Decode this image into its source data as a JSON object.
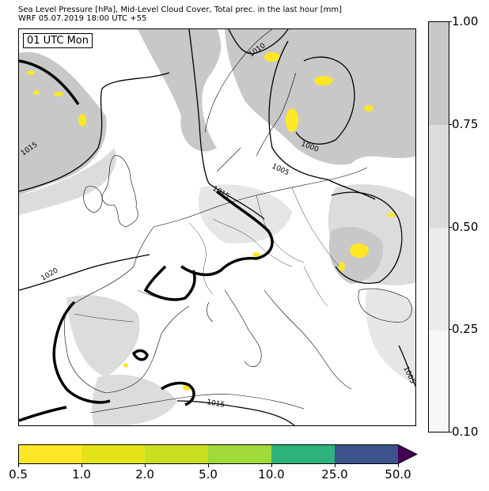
{
  "title": {
    "line1": "Sea Level Pressure [hPa], Mid-Level Cloud Cover, Total prec. in the last hour [mm]",
    "line2": "WRF 05.07.2019 18:00 UTC +55"
  },
  "map": {
    "time_label": "01 UTC Mon",
    "isobar_labels": [
      {
        "text": "1010"
      },
      {
        "text": "1015"
      },
      {
        "text": "1000"
      },
      {
        "text": "1005"
      },
      {
        "text": "1015"
      },
      {
        "text": "1020"
      },
      {
        "text": "1015"
      },
      {
        "text": "1005"
      }
    ]
  },
  "cloud_colorbar": {
    "ticks": [
      "1.00",
      "0.75",
      "0.50",
      "0.25",
      "0.10"
    ],
    "colors": [
      "#c8c8c8",
      "#dcdcdc",
      "#ebebeb",
      "#f7f7f7"
    ]
  },
  "precip_colorbar": {
    "ticks": [
      "0.5",
      "1.0",
      "2.0",
      "5.0",
      "10.0",
      "25.0",
      "50.0"
    ],
    "colors": [
      "#fde725",
      "#e4e419",
      "#c8e020",
      "#a0da39",
      "#2eb37c",
      "#3b528b",
      "#440154"
    ]
  }
}
